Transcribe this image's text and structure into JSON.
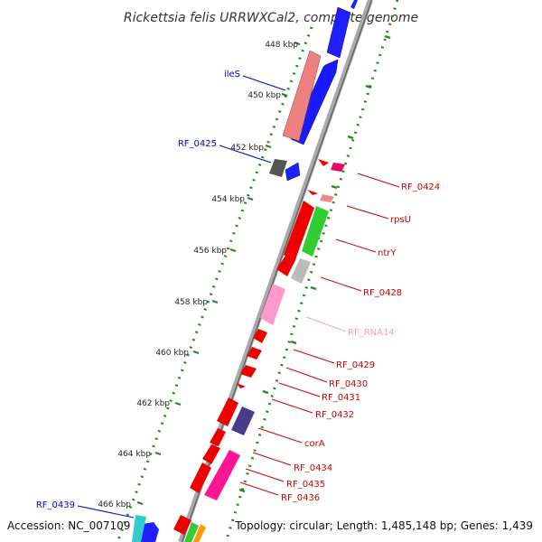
{
  "title": "Rickettsia felis URRWXCal2, complete genome",
  "footer": {
    "accession": "Accession: NC_007109",
    "topology": "Topology: circular; Length: 1,485,148 bp; Genes: 1,439"
  },
  "ticks": [
    {
      "label": "448 kbp",
      "kbp": 448
    },
    {
      "label": "450 kbp",
      "kbp": 450
    },
    {
      "label": "452 kbp",
      "kbp": 452
    },
    {
      "label": "454 kbp",
      "kbp": 454
    },
    {
      "label": "456 kbp",
      "kbp": 456
    },
    {
      "label": "458 kbp",
      "kbp": 458
    },
    {
      "label": "460 kbp",
      "kbp": 460
    },
    {
      "label": "462 kbp",
      "kbp": 462
    },
    {
      "label": "464 kbp",
      "kbp": 464
    },
    {
      "label": "466 kbp",
      "kbp": 466
    }
  ],
  "colors": {
    "backbone": "#999999",
    "forward_gene": "#0000ee",
    "reverse_gene": "#ee0000",
    "trna": "#ee7777",
    "rrna_like": "#ff88cc",
    "gc_skew": "#228822",
    "label_left": "#0000cc",
    "label_right": "#cc0000",
    "label_rna": "#ff99cc"
  },
  "labels": {
    "left": [
      {
        "text": "ileS",
        "color": "#0000cc"
      },
      {
        "text": "RF_0425",
        "color": "#0000cc"
      },
      {
        "text": "RF_0439",
        "color": "#0000cc"
      }
    ],
    "right": [
      {
        "text": "RF_0424",
        "color": "#cc0000"
      },
      {
        "text": "rpsU",
        "color": "#cc0000"
      },
      {
        "text": "ntrY",
        "color": "#cc0000"
      },
      {
        "text": "RF_0428",
        "color": "#cc0000"
      },
      {
        "text": "RF_RNA14",
        "color": "#ff99cc"
      },
      {
        "text": "RF_0429",
        "color": "#cc0000"
      },
      {
        "text": "RF_0430",
        "color": "#cc0000"
      },
      {
        "text": "RF_0431",
        "color": "#cc0000"
      },
      {
        "text": "RF_0432",
        "color": "#cc0000"
      },
      {
        "text": "corA",
        "color": "#cc0000"
      },
      {
        "text": "RF_0434",
        "color": "#cc0000"
      },
      {
        "text": "RF_0435",
        "color": "#cc0000"
      },
      {
        "text": "RF_0436",
        "color": "#cc0000"
      }
    ]
  }
}
